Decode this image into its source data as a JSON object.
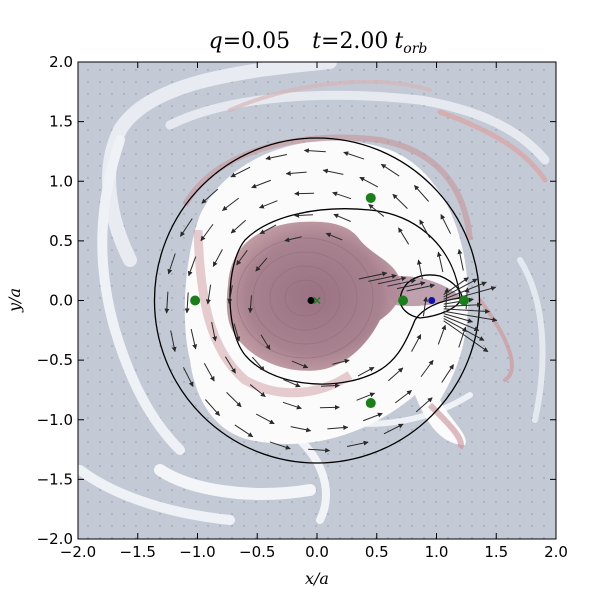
{
  "chart_data": {
    "type": "scatter",
    "title": "q = 0.05    t = 2.00 t_orb",
    "title_parts": {
      "q_label": "q",
      "q_value": "0.05",
      "t_label": "t",
      "t_value": "2.00",
      "t_unit": "t",
      "t_unit_sub": "orb"
    },
    "xlabel": "x/a",
    "ylabel": "y/a",
    "xlim": [
      -2.0,
      2.0
    ],
    "ylim": [
      -2.0,
      2.0
    ],
    "x_ticks": [
      -2.0,
      -1.5,
      -1.0,
      -0.5,
      0.0,
      0.5,
      1.0,
      1.5,
      2.0
    ],
    "y_ticks": [
      -2.0,
      -1.5,
      -1.0,
      -0.5,
      0.0,
      0.5,
      1.0,
      1.5,
      2.0
    ],
    "x_tick_labels": [
      "−2.0",
      "−1.5",
      "−1.0",
      "−0.5",
      "0.0",
      "0.5",
      "1.0",
      "1.5",
      "2.0"
    ],
    "y_tick_labels": [
      "−2.0",
      "−1.5",
      "−1.0",
      "−0.5",
      "0.0",
      "0.5",
      "1.0",
      "1.5",
      "2.0"
    ],
    "lagrange_points": [
      {
        "x": -1.02,
        "y": 0.0
      },
      {
        "x": 0.72,
        "y": 0.0
      },
      {
        "x": 1.23,
        "y": 0.0
      },
      {
        "x": 0.45,
        "y": 0.86
      },
      {
        "x": 0.45,
        "y": -0.86
      }
    ],
    "primary_star": {
      "x": -0.05,
      "y": 0.0
    },
    "companion": {
      "x": 0.96,
      "y": 0.0
    },
    "center_of_mass": {
      "x": 0.0,
      "y": 0.0
    },
    "outer_circle": {
      "cx": 0.0,
      "cy": 0.0,
      "r": 1.36
    },
    "colors": {
      "background": "#c3cad6",
      "dense_gas": "#a5808f",
      "envelope": "#ffffff",
      "lagrange_marker": "#1a7f1a",
      "primary_marker": "#000000",
      "companion_marker": "#1111aa",
      "com_marker": "#1a7f1a",
      "arrows": "#2a2a2a",
      "contour_lines": "#000000"
    }
  }
}
